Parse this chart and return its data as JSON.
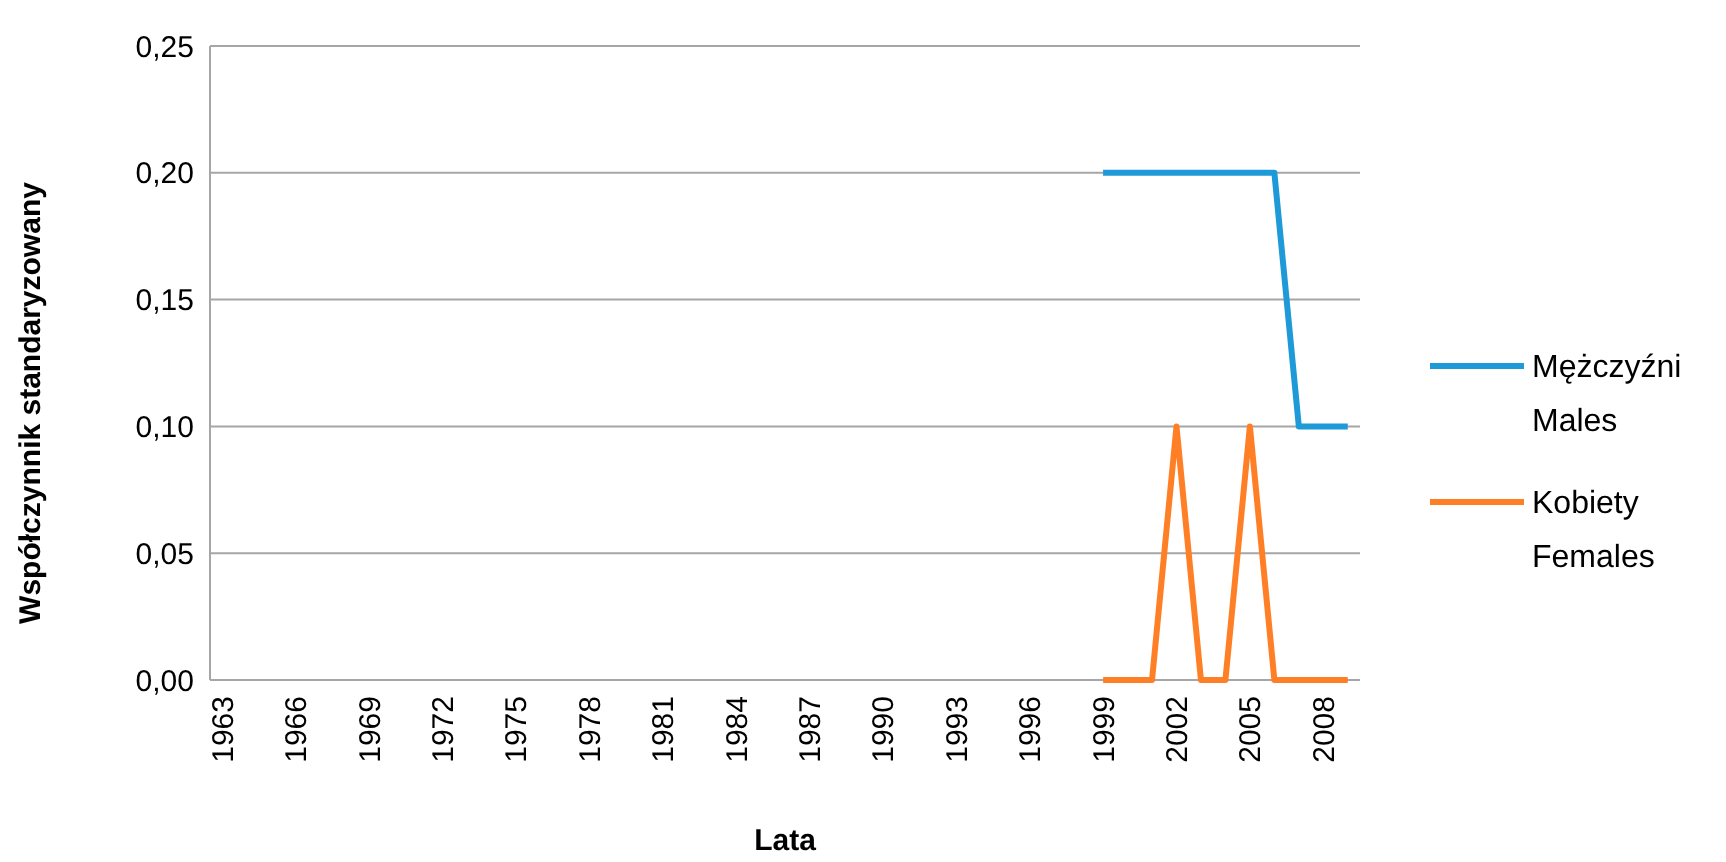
{
  "chart_data": {
    "type": "line",
    "xlabel": "Lata",
    "ylabel": "Współczynnik  standaryzowany",
    "categories": [
      "1963",
      null,
      null,
      "1966",
      null,
      null,
      "1969",
      null,
      null,
      "1972",
      null,
      null,
      "1975",
      null,
      null,
      "1978",
      null,
      null,
      "1981",
      null,
      null,
      "1984",
      null,
      null,
      "1987",
      null,
      null,
      "1990",
      null,
      null,
      "1993",
      null,
      null,
      "1996",
      null,
      null,
      "1999",
      null,
      null,
      "2002",
      null,
      null,
      "2005",
      null,
      null,
      "2008",
      null
    ],
    "series": [
      {
        "name": "Mężczyźni\nMales",
        "color": "#1e9ad8",
        "values": [
          null,
          null,
          null,
          null,
          null,
          null,
          null,
          null,
          null,
          null,
          null,
          null,
          null,
          null,
          null,
          null,
          null,
          null,
          null,
          null,
          null,
          null,
          null,
          null,
          null,
          null,
          null,
          null,
          null,
          null,
          null,
          null,
          null,
          null,
          null,
          null,
          0.2,
          0.2,
          0.2,
          0.2,
          0.2,
          0.2,
          0.2,
          0.2,
          0.1,
          0.1,
          0.1
        ]
      },
      {
        "name": "Kobiety\nFemales",
        "color": "#ff7f27",
        "values": [
          null,
          null,
          null,
          null,
          null,
          null,
          null,
          null,
          null,
          null,
          null,
          null,
          null,
          null,
          null,
          null,
          null,
          null,
          null,
          null,
          null,
          null,
          null,
          null,
          null,
          null,
          null,
          null,
          null,
          null,
          null,
          null,
          null,
          null,
          null,
          null,
          0,
          0,
          0,
          0.1,
          0,
          0,
          0.1,
          0,
          0,
          0,
          0
        ]
      }
    ],
    "ylim": [
      0,
      0.25
    ],
    "yticks": [
      {
        "value": 0,
        "label": "0,00"
      },
      {
        "value": 0.05,
        "label": "0,05"
      },
      {
        "value": 0.1,
        "label": "0,10"
      },
      {
        "value": 0.15,
        "label": "0,15"
      },
      {
        "value": 0.2,
        "label": "0,20"
      },
      {
        "value": 0.25,
        "label": "0,25"
      }
    ],
    "grid": "y",
    "legend": "right",
    "marker": "none",
    "line_style": "solid"
  }
}
